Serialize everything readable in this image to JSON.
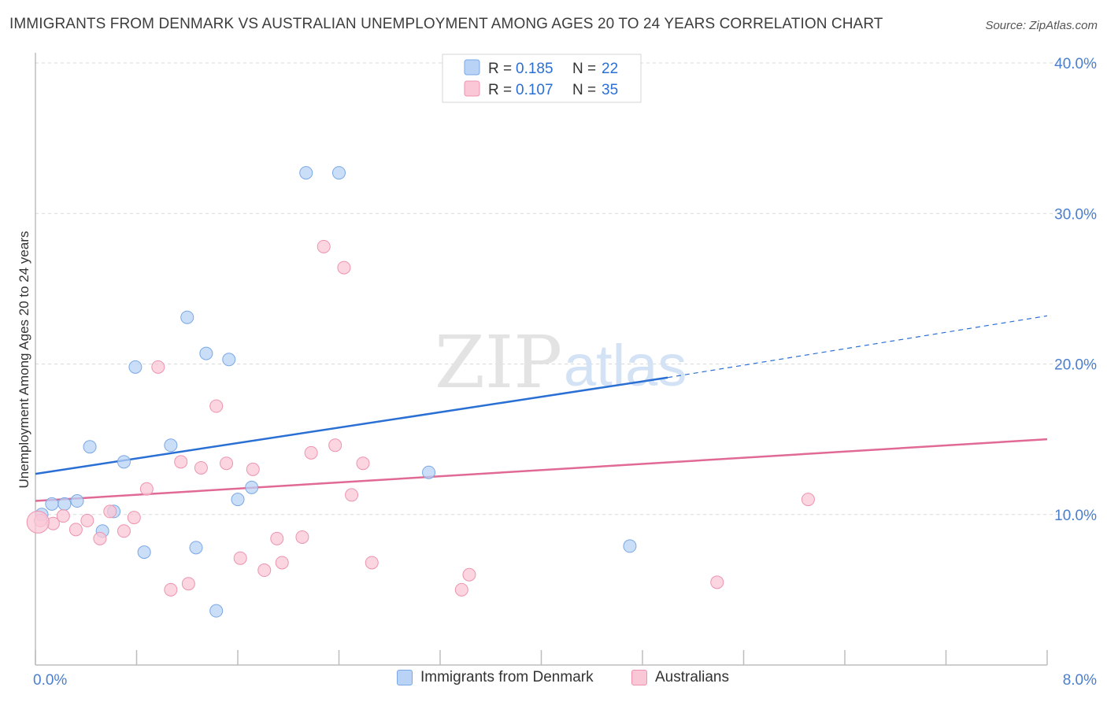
{
  "header": {
    "title": "IMMIGRANTS FROM DENMARK VS AUSTRALIAN UNEMPLOYMENT AMONG AGES 20 TO 24 YEARS CORRELATION CHART",
    "source": "Source: ZipAtlas.com"
  },
  "watermark": {
    "zip": "ZIP",
    "atlas": "atlas"
  },
  "colors": {
    "blue_fill": "#b8d3f5",
    "blue_stroke": "#7aa8e6",
    "blue_line": "#2a6fd4",
    "pink_fill": "#f9c7d6",
    "pink_stroke": "#ee93ae",
    "pink_line": "#e06a95",
    "tick_label": "#4a7fd0",
    "grid": "#d9d9d9"
  },
  "legend_top": {
    "rows": [
      {
        "r_label": "R = ",
        "r_value": "0.185",
        "n_label": "N = ",
        "n_value": "22"
      },
      {
        "r_label": "R = ",
        "r_value": "0.107",
        "n_label": "N = ",
        "n_value": "35"
      }
    ]
  },
  "legend_bottom": {
    "items": [
      {
        "label": "Immigrants from Denmark"
      },
      {
        "label": "Australians"
      }
    ]
  },
  "chart_data": {
    "type": "scatter",
    "title": "IMMIGRANTS FROM DENMARK VS AUSTRALIAN UNEMPLOYMENT AMONG AGES 20 TO 24 YEARS CORRELATION CHART",
    "xlabel": "",
    "ylabel": "Unemployment Among Ages 20 to 24 years",
    "xlim": [
      0,
      8
    ],
    "ylim": [
      0,
      40
    ],
    "x_tick_labels": [
      {
        "value": 0,
        "label": "0.0%"
      },
      {
        "value": 8,
        "label": "8.0%"
      }
    ],
    "y_tick_labels": [
      {
        "value": 10,
        "label": "10.0%"
      },
      {
        "value": 20,
        "label": "20.0%"
      },
      {
        "value": 30,
        "label": "30.0%"
      },
      {
        "value": 40,
        "label": "40.0%"
      }
    ],
    "grid": true,
    "legend_position": "top-center",
    "series": [
      {
        "name": "Immigrants from Denmark",
        "color": "#b8d3f5",
        "r": 0.185,
        "n": 22,
        "points": [
          [
            0.05,
            10.0
          ],
          [
            0.13,
            10.7
          ],
          [
            0.23,
            10.7
          ],
          [
            0.33,
            10.9
          ],
          [
            0.43,
            14.5
          ],
          [
            0.53,
            8.9
          ],
          [
            0.62,
            10.2
          ],
          [
            0.7,
            13.5
          ],
          [
            0.79,
            19.8
          ],
          [
            0.86,
            7.5
          ],
          [
            1.07,
            14.6
          ],
          [
            1.2,
            23.1
          ],
          [
            1.27,
            7.8
          ],
          [
            1.35,
            20.7
          ],
          [
            1.43,
            3.6
          ],
          [
            1.53,
            20.3
          ],
          [
            1.6,
            11.0
          ],
          [
            1.71,
            11.8
          ],
          [
            2.14,
            32.7
          ],
          [
            2.4,
            32.7
          ],
          [
            3.11,
            12.8
          ],
          [
            4.7,
            7.9
          ]
        ],
        "trend": {
          "x0": 0,
          "y0": 12.7,
          "x1": 5.0,
          "y1": 19.1,
          "dashed_to_x": 8.0,
          "dashed_to_y": 23.2
        }
      },
      {
        "name": "Australians",
        "color": "#f9c7d6",
        "r": 0.107,
        "n": 35,
        "points": [
          [
            0.04,
            9.6
          ],
          [
            0.14,
            9.4
          ],
          [
            0.22,
            9.9
          ],
          [
            0.32,
            9.0
          ],
          [
            0.41,
            9.6
          ],
          [
            0.51,
            8.4
          ],
          [
            0.59,
            10.2
          ],
          [
            0.7,
            8.9
          ],
          [
            0.78,
            9.8
          ],
          [
            0.88,
            11.7
          ],
          [
            0.97,
            19.8
          ],
          [
            1.07,
            5.0
          ],
          [
            1.15,
            13.5
          ],
          [
            1.21,
            5.4
          ],
          [
            1.31,
            13.1
          ],
          [
            1.43,
            17.2
          ],
          [
            1.51,
            13.4
          ],
          [
            1.62,
            7.1
          ],
          [
            1.72,
            13.0
          ],
          [
            1.81,
            6.3
          ],
          [
            1.91,
            8.4
          ],
          [
            1.95,
            6.8
          ],
          [
            2.11,
            8.5
          ],
          [
            2.18,
            14.1
          ],
          [
            2.28,
            27.8
          ],
          [
            2.37,
            14.6
          ],
          [
            2.44,
            26.4
          ],
          [
            2.5,
            11.3
          ],
          [
            2.59,
            13.4
          ],
          [
            2.66,
            6.8
          ],
          [
            3.37,
            5.0
          ],
          [
            3.43,
            6.0
          ],
          [
            5.39,
            5.5
          ],
          [
            6.11,
            11.0
          ],
          [
            0.02,
            9.5
          ]
        ],
        "trend": {
          "x0": 0,
          "y0": 10.9,
          "x1": 8.0,
          "y1": 15.0
        }
      }
    ]
  }
}
